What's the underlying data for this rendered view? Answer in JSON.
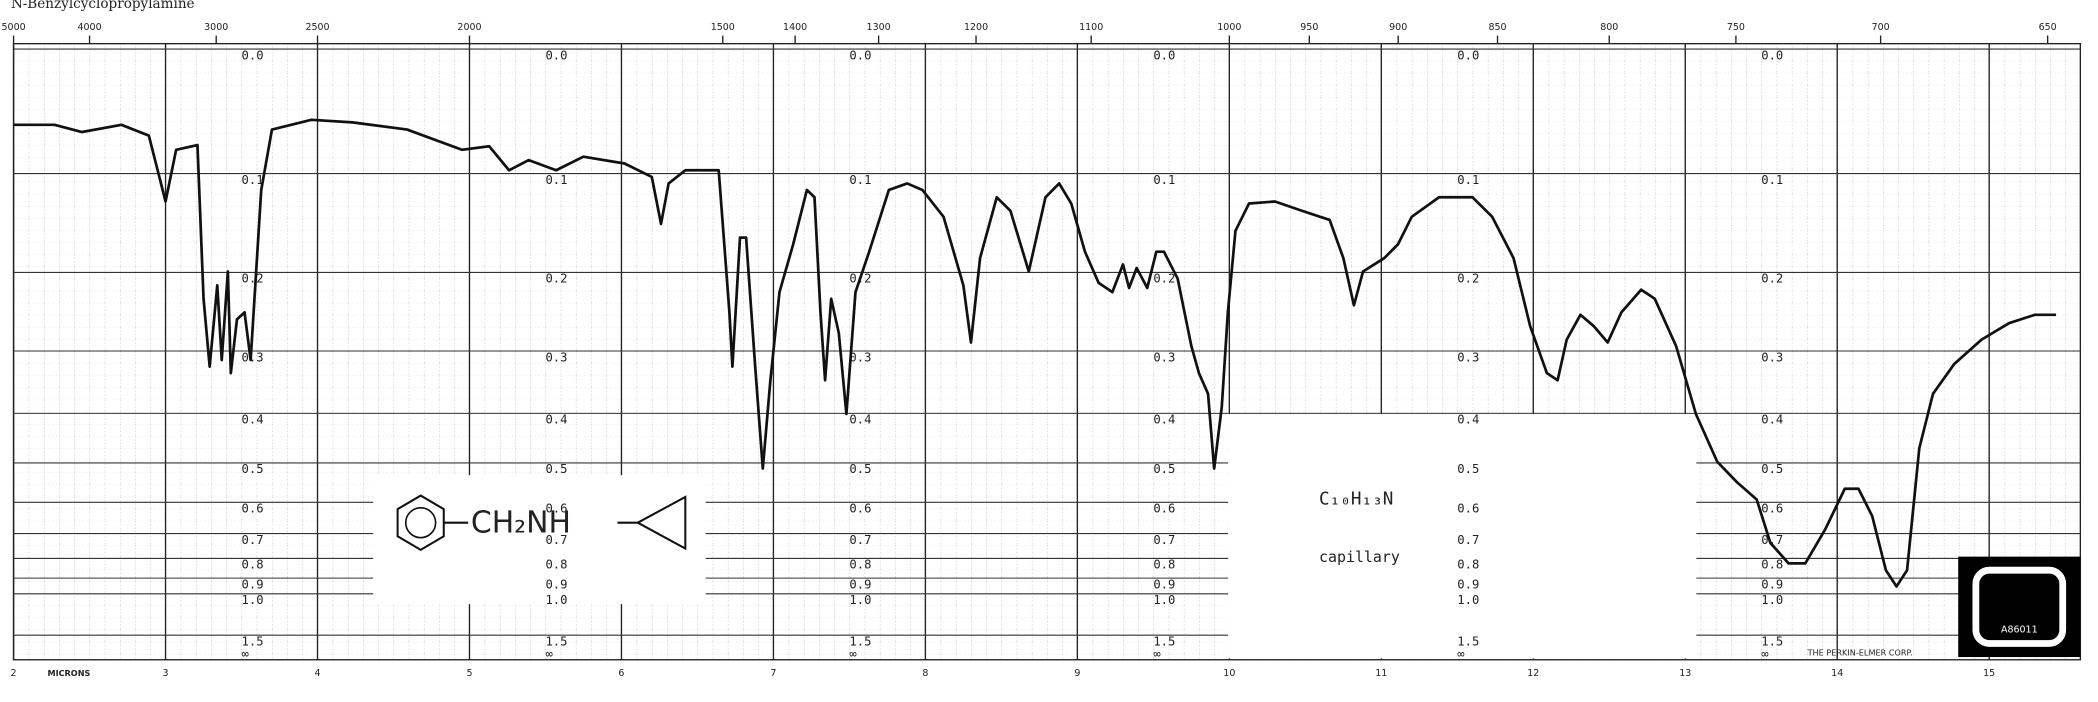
{
  "chart_data": {
    "type": "line",
    "title": "N-Benzylcyclopropylamine",
    "y_scale": "absorbance",
    "grid": true,
    "x_axis_label": "MICRONS",
    "xlim": [
      2,
      15.6
    ],
    "xticks": [
      2,
      3,
      4,
      5,
      6,
      7,
      8,
      9,
      10,
      11,
      12,
      13,
      14,
      15
    ],
    "x2ticks": [
      5000,
      4000,
      3000,
      2500,
      2000,
      1500,
      1400,
      1300,
      1200,
      1100,
      1000,
      950,
      900,
      850,
      800,
      750,
      700,
      650
    ],
    "yticks": [
      {
        "value": 0,
        "label": "0.0"
      },
      0.1,
      0.2,
      0.3,
      0.4,
      0.5,
      0.6,
      0.7,
      0.8,
      0.9,
      {
        "value": 1,
        "label": "1.0"
      },
      1.5
    ],
    "y_bottom_label": "∞",
    "x": [
      2.0,
      2.27,
      2.45,
      2.71,
      2.89,
      3.0,
      3.07,
      3.21,
      3.25,
      3.29,
      3.34,
      3.37,
      3.41,
      3.43,
      3.47,
      3.52,
      3.56,
      3.63,
      3.7,
      3.96,
      4.23,
      4.59,
      4.95,
      5.13,
      5.26,
      5.39,
      5.57,
      5.75,
      6.02,
      6.2,
      6.26,
      6.31,
      6.42,
      6.64,
      6.71,
      6.73,
      6.78,
      6.82,
      6.88,
      6.93,
      6.98,
      7.04,
      7.13,
      7.22,
      7.27,
      7.31,
      7.34,
      7.38,
      7.43,
      7.48,
      7.54,
      7.63,
      7.76,
      7.88,
      7.98,
      8.12,
      8.25,
      8.3,
      8.36,
      8.47,
      8.56,
      8.68,
      8.79,
      8.88,
      8.96,
      9.05,
      9.14,
      9.23,
      9.3,
      9.34,
      9.39,
      9.46,
      9.52,
      9.57,
      9.66,
      9.75,
      9.8,
      9.86,
      9.9,
      9.95,
      9.99,
      10.04,
      10.13,
      10.3,
      10.48,
      10.66,
      10.75,
      10.82,
      10.88,
      11.02,
      11.11,
      11.2,
      11.38,
      11.6,
      11.73,
      11.87,
      11.98,
      12.09,
      12.16,
      12.22,
      12.31,
      12.4,
      12.49,
      12.58,
      12.71,
      12.8,
      12.94,
      13.07,
      13.21,
      13.34,
      13.47,
      13.56,
      13.68,
      13.79,
      13.92,
      14.05,
      14.14,
      14.23,
      14.32,
      14.39,
      14.46,
      14.54,
      14.63,
      14.77,
      14.95,
      15.13,
      15.3,
      15.44
    ],
    "series": [
      {
        "color": "#111111",
        "values": [
          0.058,
          0.058,
          0.064,
          0.058,
          0.067,
          0.126,
          0.079,
          0.075,
          0.231,
          0.323,
          0.215,
          0.313,
          0.199,
          0.333,
          0.257,
          0.248,
          0.313,
          0.115,
          0.062,
          0.054,
          0.056,
          0.062,
          0.079,
          0.076,
          0.097,
          0.088,
          0.097,
          0.085,
          0.091,
          0.103,
          0.148,
          0.109,
          0.097,
          0.097,
          0.248,
          0.323,
          0.162,
          0.162,
          0.323,
          0.513,
          0.344,
          0.223,
          0.169,
          0.115,
          0.122,
          0.248,
          0.344,
          0.231,
          0.275,
          0.401,
          0.223,
          0.177,
          0.115,
          0.109,
          0.115,
          0.141,
          0.215,
          0.288,
          0.184,
          0.122,
          0.135,
          0.199,
          0.122,
          0.109,
          0.128,
          0.177,
          0.212,
          0.223,
          0.191,
          0.218,
          0.195,
          0.218,
          0.177,
          0.177,
          0.207,
          0.293,
          0.333,
          0.366,
          0.513,
          0.389,
          0.248,
          0.155,
          0.128,
          0.126,
          0.135,
          0.144,
          0.184,
          0.239,
          0.199,
          0.184,
          0.169,
          0.141,
          0.122,
          0.122,
          0.141,
          0.184,
          0.266,
          0.333,
          0.344,
          0.284,
          0.251,
          0.266,
          0.288,
          0.248,
          0.22,
          0.231,
          0.293,
          0.401,
          0.497,
          0.546,
          0.592,
          0.735,
          0.823,
          0.823,
          0.686,
          0.563,
          0.563,
          0.641,
          0.857,
          0.95,
          0.857,
          0.468,
          0.366,
          0.319,
          0.284,
          0.262,
          0.251,
          0.251
        ]
      }
    ]
  },
  "structure": {
    "group": "CH₂NH"
  },
  "sample": {
    "formula": "C₁₀H₁₃N",
    "phase": "capillary"
  },
  "footer": {
    "maker": "THE PERKIN-ELMER CORP.",
    "code": "A86011"
  }
}
